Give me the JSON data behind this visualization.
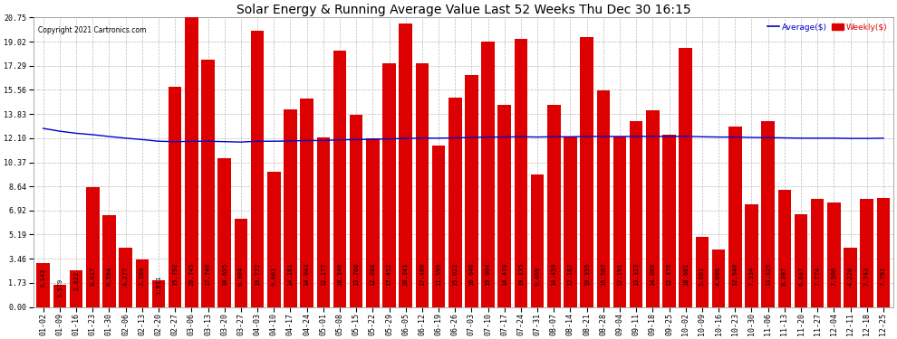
{
  "title": "Solar Energy & Running Average Value Last 52 Weeks Thu Dec 30 16:15",
  "copyright": "Copyright 2021 Cartronics.com",
  "categories": [
    "01-02",
    "01-09",
    "01-16",
    "01-23",
    "01-30",
    "02-06",
    "02-13",
    "02-20",
    "02-27",
    "03-06",
    "03-13",
    "03-20",
    "03-27",
    "04-03",
    "04-10",
    "04-17",
    "04-24",
    "05-01",
    "05-08",
    "05-15",
    "05-22",
    "05-29",
    "06-05",
    "06-12",
    "06-19",
    "06-26",
    "07-03",
    "07-10",
    "07-17",
    "07-24",
    "07-31",
    "08-07",
    "08-14",
    "08-21",
    "08-28",
    "09-04",
    "09-11",
    "09-18",
    "09-25",
    "10-02",
    "10-09",
    "10-16",
    "10-23",
    "10-30",
    "11-06",
    "11-13",
    "11-20",
    "11-27",
    "12-04",
    "12-11",
    "12-18",
    "12-25"
  ],
  "weekly_values": [
    3.143,
    1.579,
    2.622,
    8.617,
    6.594,
    4.277,
    3.38,
    1.911,
    15.792,
    20.745,
    17.74,
    10.695,
    6.304,
    19.772,
    9.661,
    14.181,
    14.943,
    12.177,
    18.346,
    13.766,
    12.088,
    17.452,
    20.341,
    17.469,
    11.599,
    15.022,
    16.646,
    19.004,
    14.47,
    19.235,
    9.469,
    14.459,
    12.187,
    19.335,
    15.507,
    12.191,
    13.323,
    14.069,
    12.376,
    18.601,
    5.001,
    4.096,
    12.94,
    7.334,
    13.325,
    8.397,
    6.637,
    7.774,
    7.506,
    4.226,
    7.743,
    7.791
  ],
  "avg_values": [
    12.8,
    12.6,
    12.45,
    12.35,
    12.22,
    12.1,
    12.0,
    11.88,
    11.85,
    11.87,
    11.88,
    11.85,
    11.82,
    11.88,
    11.88,
    11.9,
    11.93,
    11.93,
    11.98,
    12.0,
    12.02,
    12.05,
    12.08,
    12.1,
    12.1,
    12.12,
    12.15,
    12.18,
    12.18,
    12.2,
    12.18,
    12.2,
    12.2,
    12.22,
    12.22,
    12.22,
    12.22,
    12.23,
    12.22,
    12.23,
    12.2,
    12.18,
    12.18,
    12.15,
    12.14,
    12.12,
    12.1,
    12.1,
    12.1,
    12.08,
    12.08,
    12.1
  ],
  "bar_color": "#dd0000",
  "line_color": "#0000cc",
  "background_color": "#ffffff",
  "grid_color": "#bbbbbb",
  "yticks": [
    0.0,
    1.73,
    3.46,
    5.19,
    6.92,
    8.64,
    10.37,
    12.1,
    13.83,
    15.56,
    17.29,
    19.02,
    20.75
  ],
  "legend_avg_color": "#0000cc",
  "legend_weekly_color": "#dd0000",
  "title_fontsize": 10,
  "tick_fontsize": 6,
  "value_fontsize": 5
}
